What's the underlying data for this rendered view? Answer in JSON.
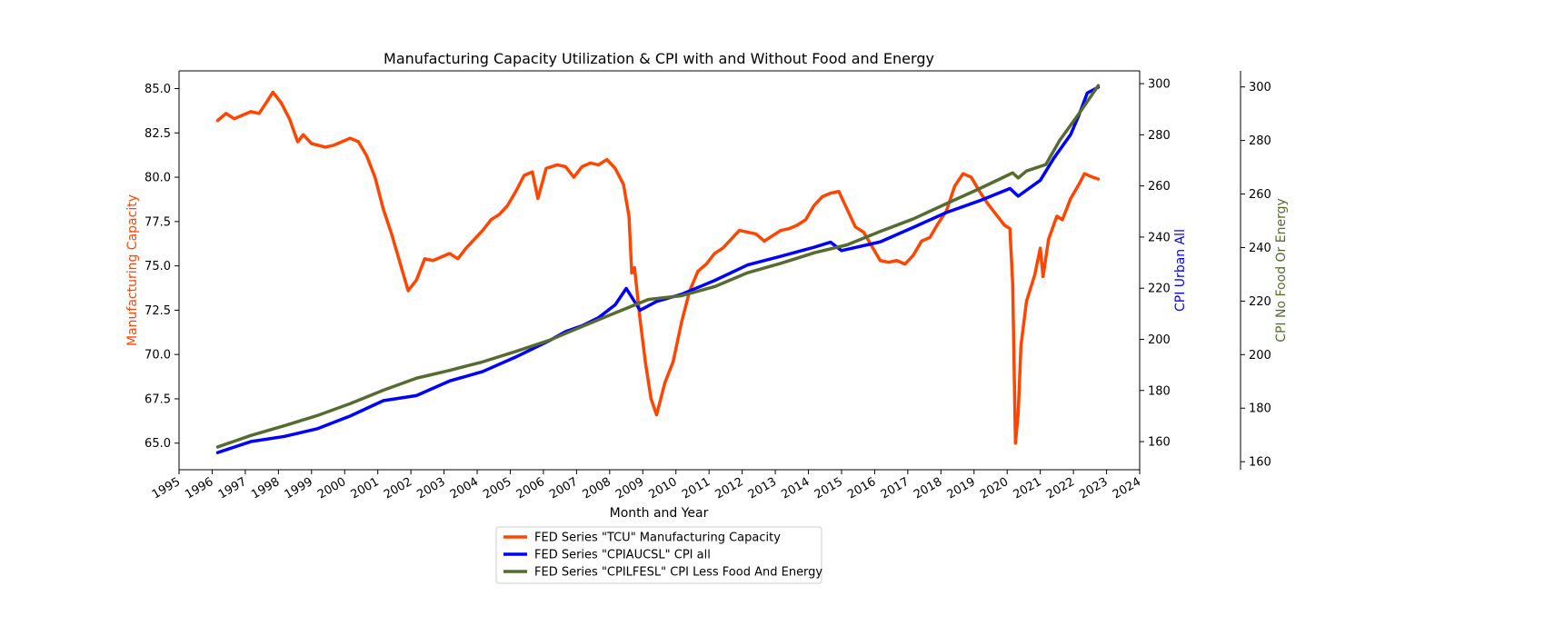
{
  "chart_data": {
    "type": "line",
    "title": "Manufacturing Capacity Utilization & CPI with and Without Food and Energy",
    "xlabel": "Month and Year",
    "xlim": [
      "1995-01-01",
      "2024-01-01"
    ],
    "x_ticks": [
      "1995",
      "1996",
      "1997",
      "1998",
      "1999",
      "2000",
      "2001",
      "2002",
      "2003",
      "2004",
      "2005",
      "2006",
      "2007",
      "2008",
      "2009",
      "2010",
      "2011",
      "2012",
      "2013",
      "2014",
      "2015",
      "2016",
      "2017",
      "2018",
      "2019",
      "2020",
      "2021",
      "2022",
      "2023",
      "2024"
    ],
    "grid": false,
    "legend_position": "bottom-center",
    "axes": {
      "left": {
        "label": "Manufacturing Capacity",
        "color": "#ff4500",
        "ylim": [
          63.5,
          86.0
        ],
        "ticks": [
          "65.0",
          "67.5",
          "70.0",
          "72.5",
          "75.0",
          "77.5",
          "80.0",
          "82.5",
          "85.0"
        ]
      },
      "right": {
        "label": "CPI Urban All",
        "color": "#0000ff",
        "ylim": [
          149.0,
          305.0
        ],
        "ticks": [
          "160",
          "180",
          "200",
          "220",
          "240",
          "260",
          "280",
          "300"
        ]
      },
      "right_outer": {
        "label": "CPI No Food Or Energy",
        "color": "#556b2f",
        "ylim": [
          157.0,
          306.0
        ],
        "ticks": [
          "160",
          "180",
          "200",
          "220",
          "240",
          "260",
          "280",
          "300"
        ]
      }
    },
    "series": [
      {
        "name": "FED Series \"TCU\" Manufacturing Capacity",
        "axis": "left",
        "color": "#ff4500",
        "points": [
          [
            "1996-03-01",
            83.2
          ],
          [
            "1996-06-01",
            83.6
          ],
          [
            "1996-09-01",
            83.3
          ],
          [
            "1996-12-01",
            83.5
          ],
          [
            "1997-03-01",
            83.7
          ],
          [
            "1997-06-01",
            83.6
          ],
          [
            "1997-09-01",
            84.3
          ],
          [
            "1997-11-01",
            84.8
          ],
          [
            "1998-02-01",
            84.2
          ],
          [
            "1998-05-01",
            83.3
          ],
          [
            "1998-08-01",
            82.0
          ],
          [
            "1998-10-01",
            82.4
          ],
          [
            "1999-01-01",
            81.9
          ],
          [
            "1999-06-01",
            81.7
          ],
          [
            "1999-09-01",
            81.8
          ],
          [
            "1999-12-01",
            82.0
          ],
          [
            "2000-03-01",
            82.2
          ],
          [
            "2000-06-01",
            82.0
          ],
          [
            "2000-09-01",
            81.2
          ],
          [
            "2000-12-01",
            80.0
          ],
          [
            "2001-03-01",
            78.2
          ],
          [
            "2001-06-01",
            76.8
          ],
          [
            "2001-09-01",
            75.2
          ],
          [
            "2001-12-01",
            73.6
          ],
          [
            "2002-03-01",
            74.2
          ],
          [
            "2002-06-01",
            75.4
          ],
          [
            "2002-09-01",
            75.3
          ],
          [
            "2002-12-01",
            75.5
          ],
          [
            "2003-03-01",
            75.7
          ],
          [
            "2003-06-01",
            75.4
          ],
          [
            "2003-09-01",
            76.0
          ],
          [
            "2003-12-01",
            76.5
          ],
          [
            "2004-03-01",
            77.0
          ],
          [
            "2004-06-01",
            77.6
          ],
          [
            "2004-09-01",
            77.9
          ],
          [
            "2004-12-01",
            78.4
          ],
          [
            "2005-03-01",
            79.2
          ],
          [
            "2005-06-01",
            80.1
          ],
          [
            "2005-09-01",
            80.3
          ],
          [
            "2005-11-01",
            78.8
          ],
          [
            "2006-02-01",
            80.5
          ],
          [
            "2006-06-01",
            80.7
          ],
          [
            "2006-09-01",
            80.6
          ],
          [
            "2006-12-01",
            80.0
          ],
          [
            "2007-03-01",
            80.6
          ],
          [
            "2007-06-01",
            80.8
          ],
          [
            "2007-09-01",
            80.7
          ],
          [
            "2007-12-01",
            81.0
          ],
          [
            "2008-03-01",
            80.5
          ],
          [
            "2008-06-01",
            79.6
          ],
          [
            "2008-08-01",
            77.8
          ],
          [
            "2008-09-01",
            74.6
          ],
          [
            "2008-10-01",
            74.9
          ],
          [
            "2008-12-01",
            72.0
          ],
          [
            "2009-02-01",
            69.5
          ],
          [
            "2009-04-01",
            67.5
          ],
          [
            "2009-06-01",
            66.6
          ],
          [
            "2009-09-01",
            68.4
          ],
          [
            "2009-12-01",
            69.6
          ],
          [
            "2010-03-01",
            71.8
          ],
          [
            "2010-06-01",
            73.6
          ],
          [
            "2010-09-01",
            74.7
          ],
          [
            "2010-12-01",
            75.1
          ],
          [
            "2011-03-01",
            75.7
          ],
          [
            "2011-06-01",
            76.0
          ],
          [
            "2011-09-01",
            76.5
          ],
          [
            "2011-12-01",
            77.0
          ],
          [
            "2012-03-01",
            76.9
          ],
          [
            "2012-06-01",
            76.8
          ],
          [
            "2012-09-01",
            76.4
          ],
          [
            "2012-12-01",
            76.7
          ],
          [
            "2013-03-01",
            77.0
          ],
          [
            "2013-06-01",
            77.1
          ],
          [
            "2013-09-01",
            77.3
          ],
          [
            "2013-12-01",
            77.6
          ],
          [
            "2014-03-01",
            78.4
          ],
          [
            "2014-06-01",
            78.9
          ],
          [
            "2014-09-01",
            79.1
          ],
          [
            "2014-12-01",
            79.2
          ],
          [
            "2015-03-01",
            78.2
          ],
          [
            "2015-06-01",
            77.2
          ],
          [
            "2015-09-01",
            76.9
          ],
          [
            "2015-12-01",
            76.1
          ],
          [
            "2016-03-01",
            75.3
          ],
          [
            "2016-06-01",
            75.2
          ],
          [
            "2016-09-01",
            75.3
          ],
          [
            "2016-12-01",
            75.1
          ],
          [
            "2017-03-01",
            75.6
          ],
          [
            "2017-06-01",
            76.4
          ],
          [
            "2017-09-01",
            76.6
          ],
          [
            "2017-12-01",
            77.4
          ],
          [
            "2018-03-01",
            78.1
          ],
          [
            "2018-06-01",
            79.5
          ],
          [
            "2018-09-01",
            80.2
          ],
          [
            "2018-12-01",
            80.0
          ],
          [
            "2019-03-01",
            79.2
          ],
          [
            "2019-06-01",
            78.5
          ],
          [
            "2019-09-01",
            77.9
          ],
          [
            "2019-12-01",
            77.3
          ],
          [
            "2020-02-01",
            77.1
          ],
          [
            "2020-03-01",
            74.0
          ],
          [
            "2020-04-01",
            65.0
          ],
          [
            "2020-05-01",
            66.7
          ],
          [
            "2020-06-01",
            70.5
          ],
          [
            "2020-08-01",
            73.0
          ],
          [
            "2020-11-01",
            74.5
          ],
          [
            "2021-01-01",
            76.0
          ],
          [
            "2021-02-01",
            74.4
          ],
          [
            "2021-04-01",
            76.5
          ],
          [
            "2021-07-01",
            77.8
          ],
          [
            "2021-09-01",
            77.6
          ],
          [
            "2021-12-01",
            78.8
          ],
          [
            "2022-03-01",
            79.6
          ],
          [
            "2022-05-01",
            80.2
          ],
          [
            "2022-08-01",
            80.0
          ],
          [
            "2022-10-01",
            79.9
          ]
        ]
      },
      {
        "name": "FED Series \"CPIAUCSL\" CPI all",
        "axis": "right",
        "color": "#0000ff",
        "points": [
          [
            "1996-03-01",
            155.7
          ],
          [
            "1997-03-01",
            160.0
          ],
          [
            "1998-03-01",
            162.0
          ],
          [
            "1999-03-01",
            165.0
          ],
          [
            "2000-03-01",
            170.0
          ],
          [
            "2001-03-01",
            176.0
          ],
          [
            "2002-03-01",
            178.0
          ],
          [
            "2003-03-01",
            183.7
          ],
          [
            "2004-03-01",
            187.4
          ],
          [
            "2005-03-01",
            193.1
          ],
          [
            "2006-03-01",
            199.4
          ],
          [
            "2006-09-01",
            203.0
          ],
          [
            "2007-03-01",
            205.3
          ],
          [
            "2007-09-01",
            208.5
          ],
          [
            "2008-03-01",
            213.5
          ],
          [
            "2008-07-01",
            219.9
          ],
          [
            "2008-12-01",
            211.4
          ],
          [
            "2009-06-01",
            214.8
          ],
          [
            "2010-03-01",
            217.6
          ],
          [
            "2011-03-01",
            223.0
          ],
          [
            "2012-03-01",
            229.1
          ],
          [
            "2013-03-01",
            232.5
          ],
          [
            "2014-03-01",
            236.0
          ],
          [
            "2014-09-01",
            238.0
          ],
          [
            "2015-01-01",
            234.7
          ],
          [
            "2016-03-01",
            238.1
          ],
          [
            "2017-03-01",
            243.8
          ],
          [
            "2018-03-01",
            249.6
          ],
          [
            "2019-03-01",
            254.2
          ],
          [
            "2020-02-01",
            259.0
          ],
          [
            "2020-05-01",
            256.0
          ],
          [
            "2021-01-01",
            262.2
          ],
          [
            "2021-06-01",
            271.0
          ],
          [
            "2021-12-01",
            280.1
          ],
          [
            "2022-03-01",
            287.7
          ],
          [
            "2022-06-01",
            296.3
          ],
          [
            "2022-10-01",
            298.6
          ]
        ]
      },
      {
        "name": "FED Series \"CPILFESL\" CPI Less Food And Energy",
        "axis": "right_outer",
        "color": "#556b2f",
        "points": [
          [
            "1996-03-01",
            165.5
          ],
          [
            "1997-03-01",
            169.8
          ],
          [
            "1998-03-01",
            173.4
          ],
          [
            "1999-03-01",
            177.2
          ],
          [
            "2000-03-01",
            181.7
          ],
          [
            "2001-03-01",
            186.7
          ],
          [
            "2002-03-01",
            191.2
          ],
          [
            "2003-03-01",
            194.1
          ],
          [
            "2004-03-01",
            197.3
          ],
          [
            "2005-03-01",
            201.2
          ],
          [
            "2006-03-01",
            205.3
          ],
          [
            "2007-03-01",
            210.5
          ],
          [
            "2008-03-01",
            215.6
          ],
          [
            "2009-03-01",
            220.6
          ],
          [
            "2010-03-01",
            222.0
          ],
          [
            "2011-03-01",
            225.4
          ],
          [
            "2012-03-01",
            230.6
          ],
          [
            "2013-03-01",
            234.1
          ],
          [
            "2014-03-01",
            238.0
          ],
          [
            "2015-03-01",
            241.0
          ],
          [
            "2016-03-01",
            246.0
          ],
          [
            "2017-03-01",
            250.7
          ],
          [
            "2018-03-01",
            256.4
          ],
          [
            "2019-03-01",
            262.0
          ],
          [
            "2020-03-01",
            267.9
          ],
          [
            "2020-05-01",
            266.0
          ],
          [
            "2020-08-01",
            268.6
          ],
          [
            "2021-03-01",
            271.0
          ],
          [
            "2021-08-01",
            280.0
          ],
          [
            "2022-03-01",
            290.0
          ],
          [
            "2022-10-01",
            300.5
          ]
        ]
      }
    ]
  }
}
